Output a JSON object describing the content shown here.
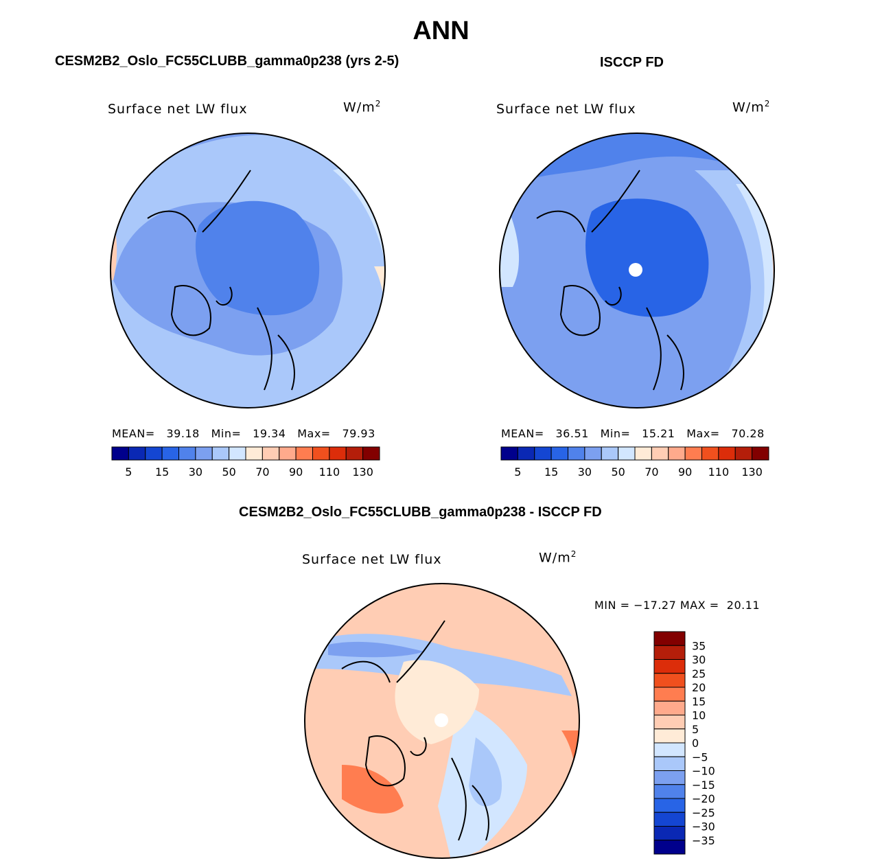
{
  "page": {
    "title": "ANN"
  },
  "panels": [
    {
      "case_title": "CESM2B2_Oslo_FC55CLUBB_gamma0p238 (yrs 2-5)",
      "field_label": "Surface net LW flux",
      "units_label": "W/m",
      "units_exp": "2",
      "stats": {
        "mean_label": "MEAN=",
        "mean": "39.18",
        "min_label": "Min=",
        "min": "19.34",
        "max_label": "Max=",
        "max": "79.93"
      }
    },
    {
      "case_title": "ISCCP FD",
      "field_label": "Surface net LW flux",
      "units_label": "W/m",
      "units_exp": "2",
      "stats": {
        "mean_label": "MEAN=",
        "mean": "36.51",
        "min_label": "Min=",
        "min": "15.21",
        "max_label": "Max=",
        "max": "70.28"
      }
    },
    {
      "case_title": "CESM2B2_Oslo_FC55CLUBB_gamma0p238 - ISCCP FD",
      "field_label": "Surface net LW flux",
      "units_label": "W/m",
      "units_exp": "2",
      "stats": {
        "min_label": "MIN =",
        "min": "−17.27",
        "max_label": "MAX =",
        "max": "20.11"
      }
    }
  ],
  "chart_data": [
    {
      "type": "heatmap",
      "projection": "north-polar-stereographic",
      "title": "CESM2B2_Oslo_FC55CLUBB_gamma0p238 (yrs 2-5)",
      "field": "Surface net LW flux",
      "units": "W/m2",
      "stats": {
        "mean": 39.18,
        "min": 19.34,
        "max": 79.93
      },
      "colorbar": {
        "tick_labels": [
          "5",
          "15",
          "30",
          "50",
          "70",
          "90",
          "110",
          "130"
        ],
        "colors": [
          "#00008c",
          "#0a28b4",
          "#1446d2",
          "#2864e6",
          "#5082eb",
          "#7ca0f0",
          "#aac8fa",
          "#d2e6ff",
          "#ffebd7",
          "#ffcdb4",
          "#ffaa8c",
          "#ff7d50",
          "#f0501e",
          "#dc2d0a",
          "#b41e0a",
          "#820000"
        ]
      }
    },
    {
      "type": "heatmap",
      "projection": "north-polar-stereographic",
      "title": "ISCCP FD",
      "field": "Surface net LW flux",
      "units": "W/m2",
      "stats": {
        "mean": 36.51,
        "min": 15.21,
        "max": 70.28
      },
      "colorbar": {
        "tick_labels": [
          "5",
          "15",
          "30",
          "50",
          "70",
          "90",
          "110",
          "130"
        ],
        "colors": [
          "#00008c",
          "#0a28b4",
          "#1446d2",
          "#2864e6",
          "#5082eb",
          "#7ca0f0",
          "#aac8fa",
          "#d2e6ff",
          "#ffebd7",
          "#ffcdb4",
          "#ffaa8c",
          "#ff7d50",
          "#f0501e",
          "#dc2d0a",
          "#b41e0a",
          "#820000"
        ]
      }
    },
    {
      "type": "heatmap",
      "projection": "north-polar-stereographic",
      "title": "CESM2B2_Oslo_FC55CLUBB_gamma0p238 - ISCCP FD",
      "field": "Surface net LW flux",
      "units": "W/m2",
      "stats": {
        "min": -17.27,
        "max": 20.11
      },
      "colorbar": {
        "tick_labels": [
          "35",
          "30",
          "25",
          "20",
          "15",
          "10",
          "5",
          "0",
          "−5",
          "−10",
          "−15",
          "−20",
          "−25",
          "−30",
          "−35"
        ],
        "colors": [
          "#820000",
          "#b41e0a",
          "#dc2d0a",
          "#f0501e",
          "#ff7d50",
          "#ffaa8c",
          "#ffcdb4",
          "#ffebd7",
          "#d2e6ff",
          "#aac8fa",
          "#7ca0f0",
          "#5082eb",
          "#2864e6",
          "#1446d2",
          "#0a28b4",
          "#00008c"
        ]
      }
    }
  ]
}
